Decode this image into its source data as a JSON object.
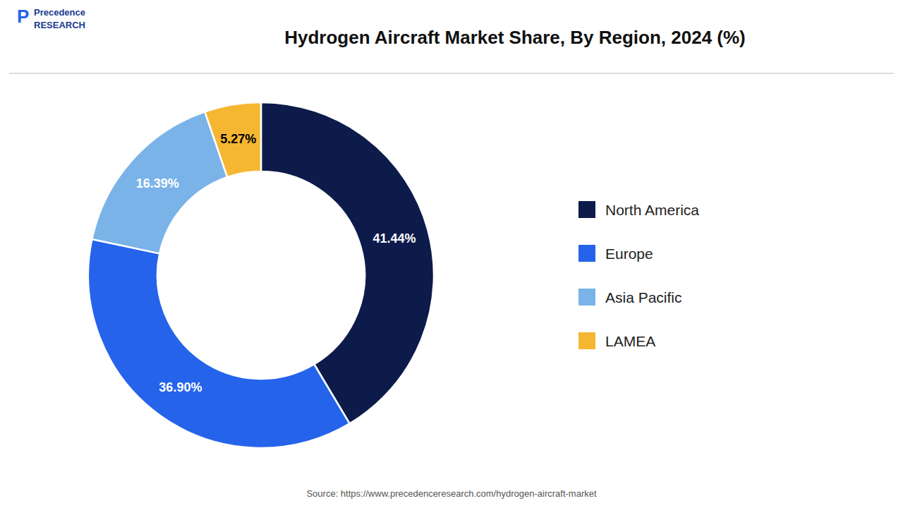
{
  "chart_data": {
    "type": "donut",
    "title": "Hydrogen Aircraft Market Share, By Region, 2024 (%)",
    "categories": [
      "North America",
      "Europe",
      "Asia Pacific",
      "LAMEA"
    ],
    "values": [
      41.44,
      36.9,
      16.39,
      5.27
    ],
    "value_labels": [
      "41.44%",
      "36.90%",
      "16.39%",
      "5.27%"
    ],
    "colors": [
      "#0d1b4b",
      "#2563eb",
      "#7ab3e8",
      "#f5b731"
    ],
    "data_labels": true,
    "legend": "right",
    "annotations": [
      "P",
      "Precedence",
      "RESEARCH",
      "Source: https://www.precedenceresearch.com/hydrogen-aircraft-market"
    ]
  }
}
